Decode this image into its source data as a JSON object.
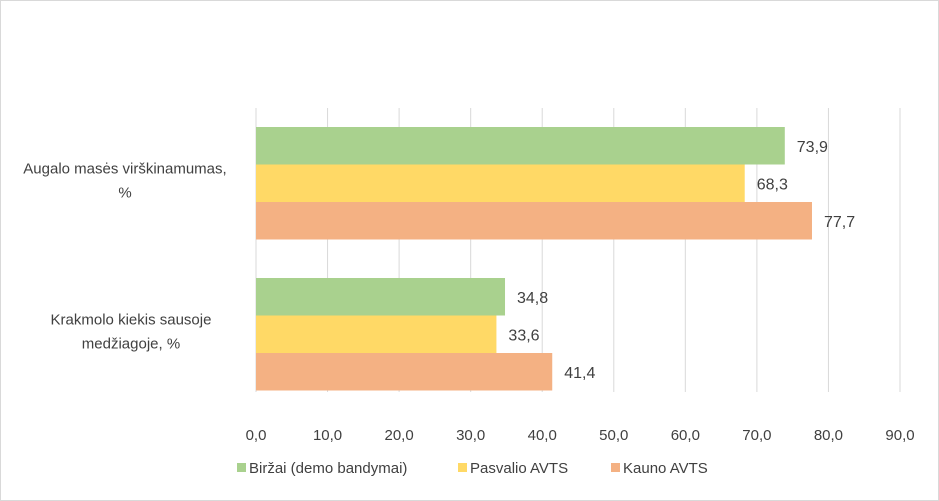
{
  "chart_data": {
    "type": "bar",
    "orientation": "horizontal",
    "title": "",
    "xlabel": "",
    "ylabel": "",
    "categories": [
      "Augalo masės virškinamumas, %",
      "Krakmolo kiekis sausoje medžiagoje, %"
    ],
    "category_lines": [
      [
        "Augalo masės virškinamumas,",
        "%"
      ],
      [
        "Krakmolo kiekis sausoje",
        "medžiagoje, %"
      ]
    ],
    "series": [
      {
        "name": "Biržai (demo bandymai)",
        "color": "#a9d18e",
        "values": [
          73.9,
          34.8
        ],
        "labels": [
          "73,9",
          "34,8"
        ]
      },
      {
        "name": "Pasvalio AVTS",
        "color": "#ffd966",
        "values": [
          68.3,
          33.6
        ],
        "labels": [
          "68,3",
          "33,6"
        ]
      },
      {
        "name": "Kauno AVTS",
        "color": "#f4b183",
        "values": [
          77.7,
          41.4
        ],
        "labels": [
          "77,7",
          "41,4"
        ]
      }
    ],
    "xlim": [
      0,
      90
    ],
    "ticks": [
      0,
      10,
      20,
      30,
      40,
      50,
      60,
      70,
      80,
      90
    ],
    "tick_labels": [
      "0,0",
      "10,0",
      "20,0",
      "30,0",
      "40,0",
      "50,0",
      "60,0",
      "70,0",
      "80,0",
      "90,0"
    ],
    "grid": true,
    "gridline_color": "#d9d9d9",
    "legend_position": "bottom"
  }
}
